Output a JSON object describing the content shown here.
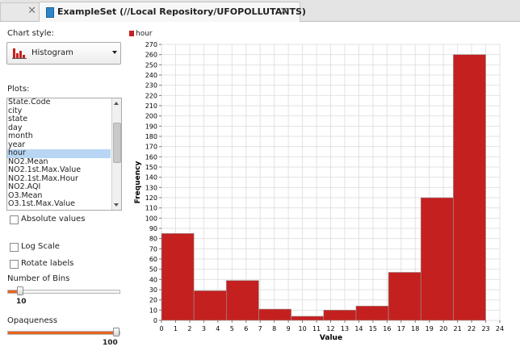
{
  "tabs": [
    {
      "label": "",
      "close": "✕"
    },
    {
      "label": "ExampleSet (//Local Repository/UFOPOLLUTANTS)",
      "close": "✕"
    }
  ],
  "panel": {
    "chart_style_label": "Chart style:",
    "chart_style_value": "Histogram",
    "plots_label": "Plots:",
    "plots": [
      "State.Code",
      "city",
      "state",
      "day",
      "month",
      "year",
      "hour",
      "NO2.Mean",
      "NO2.1st.Max.Value",
      "NO2.1st.Max.Hour",
      "NO2.AQI",
      "O3.Mean",
      "O3.1st.Max.Value"
    ],
    "plots_selected": "hour",
    "absolute_values_label": "Absolute values",
    "log_scale_label": "Log Scale",
    "rotate_labels_label": "Rotate labels",
    "bins_label": "Number of Bins",
    "bins_value": "10",
    "opaqueness_label": "Opaqueness",
    "opaqueness_value": "100"
  },
  "colors": {
    "bar": "#c42020",
    "accent": "#e8641e",
    "selection": "#b8d6f4"
  },
  "chart_data": {
    "type": "bar",
    "legend": "hour",
    "xlabel": "Value",
    "ylabel": "Frequency",
    "xlim": [
      0,
      24
    ],
    "ylim": [
      0,
      270
    ],
    "xticks": [
      0,
      1,
      2,
      3,
      4,
      5,
      6,
      7,
      8,
      9,
      10,
      11,
      12,
      13,
      14,
      15,
      16,
      17,
      18,
      19,
      20,
      21,
      22,
      23,
      24
    ],
    "yticks": [
      0,
      10,
      20,
      30,
      40,
      50,
      60,
      70,
      80,
      90,
      100,
      110,
      120,
      130,
      140,
      150,
      160,
      170,
      180,
      190,
      200,
      210,
      220,
      230,
      240,
      250,
      260,
      270
    ],
    "bins": [
      {
        "x0": 0.0,
        "x1": 2.3,
        "value": 85
      },
      {
        "x0": 2.3,
        "x1": 4.6,
        "value": 29
      },
      {
        "x0": 4.6,
        "x1": 6.9,
        "value": 39
      },
      {
        "x0": 6.9,
        "x1": 9.2,
        "value": 11
      },
      {
        "x0": 9.2,
        "x1": 11.5,
        "value": 4
      },
      {
        "x0": 11.5,
        "x1": 13.8,
        "value": 10
      },
      {
        "x0": 13.8,
        "x1": 16.1,
        "value": 14
      },
      {
        "x0": 16.1,
        "x1": 18.4,
        "value": 47
      },
      {
        "x0": 18.4,
        "x1": 20.7,
        "value": 120
      },
      {
        "x0": 20.7,
        "x1": 23.0,
        "value": 260
      }
    ]
  }
}
